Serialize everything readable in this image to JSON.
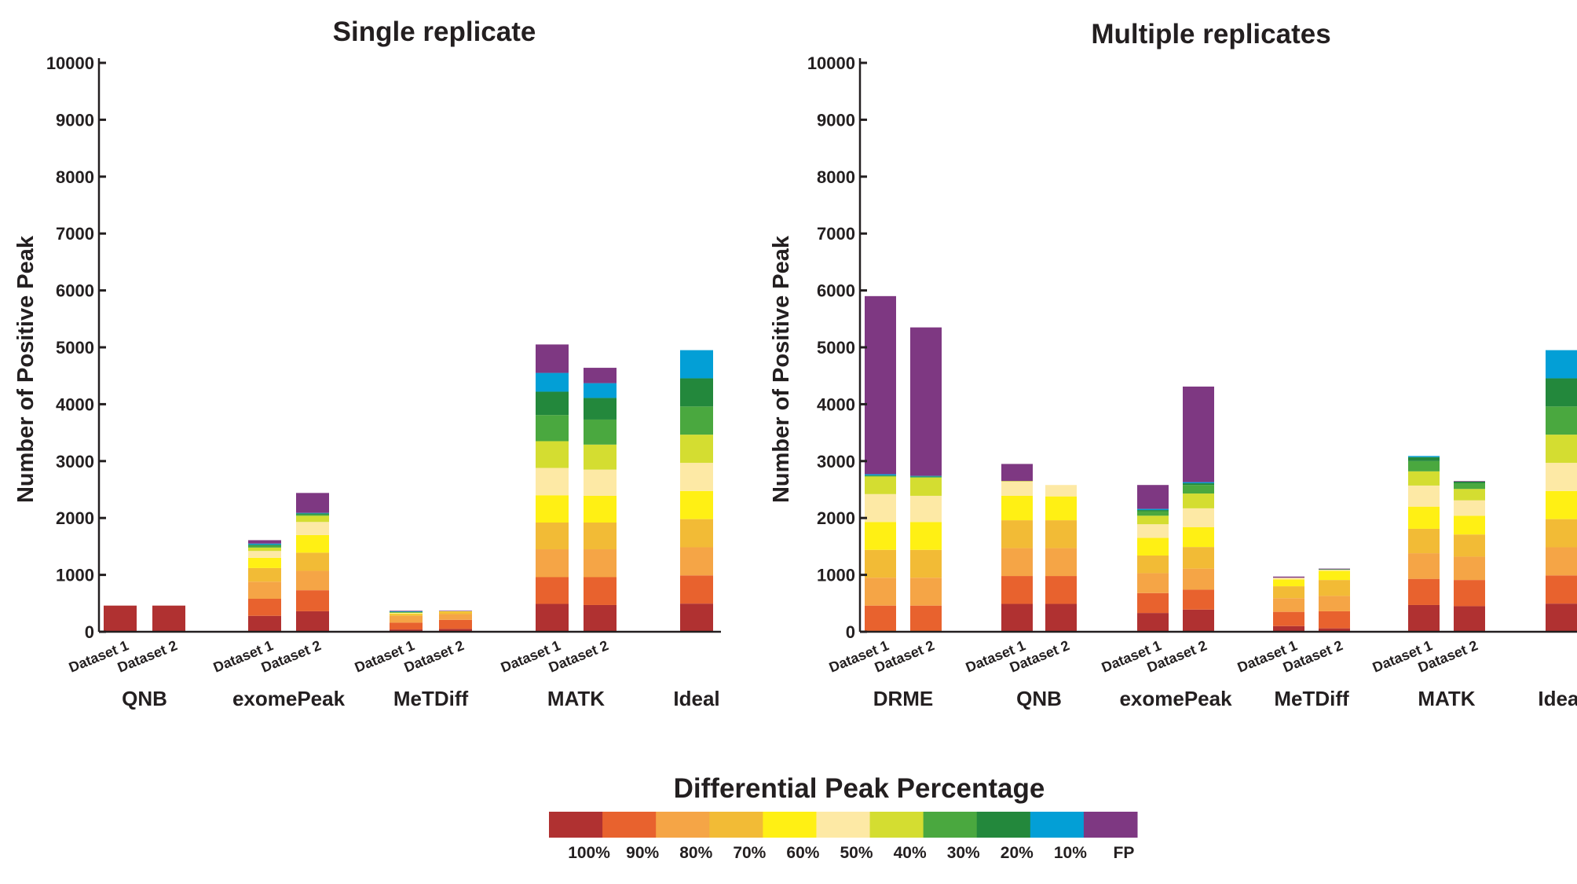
{
  "chart_data": [
    {
      "type": "bar",
      "stacked": true,
      "title": "Single replicate",
      "ylabel": "Number of Positive Peak",
      "ylim": [
        0,
        10000
      ],
      "yticks": [
        0,
        1000,
        2000,
        3000,
        4000,
        5000,
        6000,
        7000,
        8000,
        9000,
        10000
      ],
      "groups": [
        {
          "label": "QNB",
          "bars": [
            {
              "label": "Dataset 1",
              "values": [
                460,
                0,
                0,
                0,
                0,
                0,
                0,
                0,
                0,
                0,
                0
              ]
            },
            {
              "label": "Dataset 2",
              "values": [
                460,
                0,
                0,
                0,
                0,
                0,
                0,
                0,
                0,
                0,
                0
              ]
            }
          ]
        },
        {
          "label": "exomePeak",
          "bars": [
            {
              "label": "Dataset 1",
              "values": [
                280,
                300,
                300,
                240,
                180,
                120,
                60,
                30,
                20,
                20,
                60
              ]
            },
            {
              "label": "Dataset 2",
              "values": [
                360,
                370,
                340,
                320,
                310,
                230,
                110,
                20,
                20,
                10,
                350
              ]
            }
          ]
        },
        {
          "label": "MeTDiff",
          "bars": [
            {
              "label": "Dataset 1",
              "values": [
                40,
                120,
                120,
                30,
                10,
                10,
                10,
                5,
                5,
                10,
                10
              ]
            },
            {
              "label": "Dataset 2",
              "values": [
                50,
                160,
                100,
                40,
                10,
                0,
                0,
                0,
                0,
                0,
                10
              ]
            }
          ]
        },
        {
          "label": "MATK",
          "bars": [
            {
              "label": "Dataset 1",
              "values": [
                490,
                470,
                490,
                470,
                480,
                480,
                470,
                460,
                410,
                330,
                500
              ]
            },
            {
              "label": "Dataset 2",
              "values": [
                470,
                490,
                490,
                470,
                470,
                460,
                440,
                440,
                380,
                260,
                270
              ]
            }
          ]
        },
        {
          "label": "Ideal",
          "bars": [
            {
              "label": "",
              "values": [
                495,
                495,
                495,
                495,
                495,
                495,
                495,
                495,
                495,
                495,
                0
              ]
            }
          ]
        }
      ]
    },
    {
      "type": "bar",
      "stacked": true,
      "title": "Multiple replicates",
      "ylabel": "Number of Positive Peak",
      "ylim": [
        0,
        10000
      ],
      "yticks": [
        0,
        1000,
        2000,
        3000,
        4000,
        5000,
        6000,
        7000,
        8000,
        9000,
        10000
      ],
      "groups": [
        {
          "label": "DRME",
          "bars": [
            {
              "label": "Dataset 1",
              "values": [
                0,
                460,
                490,
                490,
                490,
                490,
                310,
                10,
                10,
                20,
                3130
              ]
            },
            {
              "label": "Dataset 2",
              "values": [
                0,
                460,
                490,
                490,
                490,
                460,
                320,
                10,
                10,
                10,
                2610
              ]
            }
          ]
        },
        {
          "label": "QNB",
          "bars": [
            {
              "label": "Dataset 1",
              "values": [
                490,
                490,
                490,
                490,
                430,
                250,
                10,
                0,
                0,
                0,
                300
              ]
            },
            {
              "label": "Dataset 2",
              "values": [
                490,
                490,
                490,
                490,
                420,
                200,
                0,
                0,
                0,
                0,
                0
              ]
            }
          ]
        },
        {
          "label": "exomePeak",
          "bars": [
            {
              "label": "Dataset 1",
              "values": [
                330,
                350,
                350,
                310,
                310,
                240,
                150,
                80,
                20,
                20,
                420
              ]
            },
            {
              "label": "Dataset 2",
              "values": [
                390,
                350,
                370,
                380,
                350,
                330,
                260,
                150,
                30,
                20,
                1680
              ]
            }
          ]
        },
        {
          "label": "MeTDiff",
          "bars": [
            {
              "label": "Dataset 1",
              "values": [
                100,
                250,
                240,
                210,
                120,
                30,
                0,
                0,
                0,
                0,
                20
              ]
            },
            {
              "label": "Dataset 2",
              "values": [
                60,
                300,
                270,
                280,
                160,
                20,
                0,
                0,
                10,
                0,
                10
              ]
            }
          ]
        },
        {
          "label": "MATK",
          "bars": [
            {
              "label": "Dataset 1",
              "values": [
                470,
                460,
                450,
                430,
                390,
                370,
                250,
                180,
                70,
                20,
                0
              ]
            },
            {
              "label": "Dataset 2",
              "values": [
                450,
                460,
                410,
                390,
                330,
                270,
                200,
                100,
                30,
                0,
                10
              ]
            }
          ]
        },
        {
          "label": "Ideal",
          "bars": [
            {
              "label": "",
              "values": [
                495,
                495,
                495,
                495,
                495,
                495,
                495,
                495,
                495,
                495,
                0
              ]
            }
          ]
        }
      ]
    }
  ],
  "legend": {
    "title": "Differential Peak Percentage",
    "entries": [
      {
        "label": "100%",
        "color": "#b03131"
      },
      {
        "label": "90%",
        "color": "#e8622e"
      },
      {
        "label": "80%",
        "color": "#f5a546"
      },
      {
        "label": "70%",
        "color": "#f2bb36"
      },
      {
        "label": "60%",
        "color": "#fff014"
      },
      {
        "label": "50%",
        "color": "#fde9a5"
      },
      {
        "label": "40%",
        "color": "#d4dd31"
      },
      {
        "label": "30%",
        "color": "#4aa83f"
      },
      {
        "label": "20%",
        "color": "#23883c"
      },
      {
        "label": "10%",
        "color": "#039fd6"
      },
      {
        "label": "FP",
        "color": "#7e3882"
      }
    ]
  }
}
